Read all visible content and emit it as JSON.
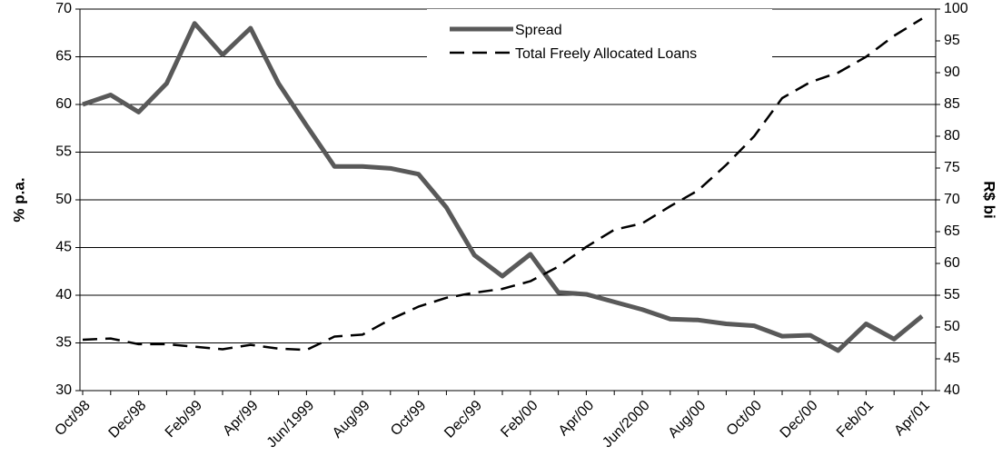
{
  "chart_data": {
    "type": "line",
    "y_label": "% p.a.",
    "y2_label": "R$ bi",
    "categories": [
      "Oct/98",
      null,
      "Dec/98",
      null,
      "Feb/99",
      null,
      "Apr/99",
      null,
      "Jun/1999",
      null,
      "Aug/99",
      null,
      "Oct/99",
      null,
      "Dec/99",
      null,
      "Feb/00",
      null,
      "Apr/00",
      null,
      "Jun/2000",
      null,
      "Aug/00",
      null,
      "Oct/00",
      null,
      "Dec/00",
      null,
      "Feb/01",
      null,
      "Apr/01"
    ],
    "series": [
      {
        "name": "Spread",
        "color": "#595959",
        "values": [
          60,
          61,
          59.2,
          62.2,
          68.5,
          65.2,
          68,
          62.2,
          57.8,
          53.5,
          53.5,
          53.3,
          52.7,
          49.2,
          44.2,
          42,
          44.3,
          40.3,
          40.1,
          39.3,
          38.5,
          37.5,
          37.4,
          37,
          36.8,
          35.7,
          35.8,
          34.2,
          37,
          35.4,
          37.8
        ]
      },
      {
        "name": "Total Freely Allocated Loans",
        "color": "#000000",
        "axis": "y2",
        "values": [
          48,
          48.2,
          47.3,
          47.3,
          46.9,
          46.5,
          47.2,
          46.6,
          46.4,
          48.5,
          48.8,
          51.2,
          53.2,
          54.6,
          55.4,
          56,
          57.2,
          59.5,
          62.6,
          65.3,
          66.3,
          69,
          71.5,
          75.5,
          80,
          86,
          88.5,
          90,
          92.5,
          95.8,
          98.5
        ]
      }
    ],
    "ylim": [
      30,
      70
    ],
    "yticks": [
      30,
      35,
      40,
      45,
      50,
      55,
      60,
      65,
      70
    ],
    "y2lim": [
      40,
      100
    ],
    "y2ticks": [
      40,
      45,
      50,
      55,
      60,
      65,
      70,
      75,
      80,
      85,
      90,
      95,
      100
    ],
    "grid": true,
    "legend": "top"
  }
}
